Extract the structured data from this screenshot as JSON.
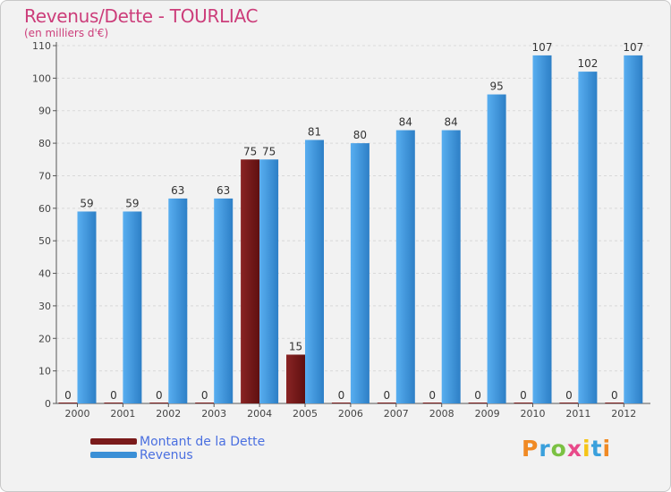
{
  "colors": {
    "title": "#cc3d7a",
    "dette": "#7a1a1a",
    "revenus": "#3a8fd6",
    "legend_text": "#4a6fe0"
  },
  "chart_data": {
    "type": "bar",
    "title": "Revenus/Dette - TOURLIAC",
    "subtitle": "(en milliers d'€)",
    "xlabel": "",
    "ylabel": "",
    "ylim": [
      0,
      110
    ],
    "yticks": [
      0,
      10,
      20,
      30,
      40,
      50,
      60,
      70,
      80,
      90,
      100,
      110
    ],
    "grid": true,
    "categories": [
      "2000",
      "2001",
      "2002",
      "2003",
      "2004",
      "2005",
      "2006",
      "2007",
      "2008",
      "2009",
      "2010",
      "2011",
      "2012"
    ],
    "series": [
      {
        "name": "Montant de la Dette",
        "values": [
          0,
          0,
          0,
          0,
          75,
          15,
          0,
          0,
          0,
          0,
          0,
          0,
          0
        ]
      },
      {
        "name": "Revenus",
        "values": [
          59,
          59,
          63,
          63,
          75,
          81,
          80,
          84,
          84,
          95,
          107,
          102,
          107
        ]
      }
    ],
    "legend_position": "bottom-left"
  },
  "logo": {
    "letters": [
      "P",
      "r",
      "o",
      "x",
      "i",
      "t",
      "i"
    ],
    "colors": [
      "#f08a24",
      "#3aa0dc",
      "#7bc143",
      "#e84a8a",
      "#f5c518",
      "#3aa0dc",
      "#f08a24"
    ]
  }
}
